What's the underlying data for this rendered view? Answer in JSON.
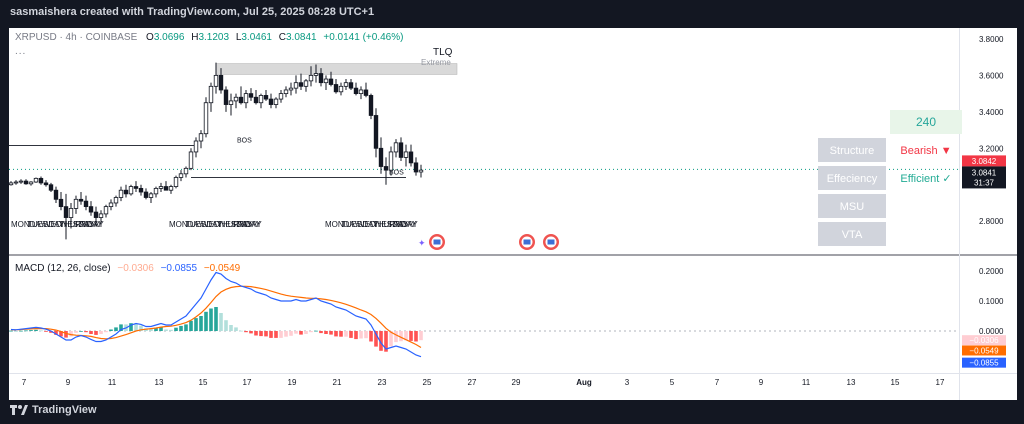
{
  "header": {
    "text": "sasmaishera created with TradingView.com, Jul 25, 2025 08:28 UTC+1"
  },
  "legend": {
    "symbol": "XRPUSD · 4h · COINBASE",
    "o_label": "O",
    "o": "3.0696",
    "h_label": "H",
    "h": "3.1203",
    "l_label": "L",
    "l": "3.0461",
    "c_label": "C",
    "c": "3.0841",
    "change": "+0.0141 (+0.46%)",
    "dots": "..."
  },
  "macd_legend": {
    "name": "MACD (12, 26, close)",
    "hist": "−0.0306",
    "macd": "−0.0855",
    "signal": "−0.0549"
  },
  "annotations": {
    "tlq": "TLQ",
    "extreme": "Extreme",
    "bos1": "BOS",
    "bos2": "BOS"
  },
  "day_labels": {
    "g1": [
      "MONDAY",
      "TUESDAY",
      "WEDNESDAY",
      "THURSDAY",
      "FRIDAY"
    ],
    "g2": [
      "MONDAY",
      "TUESDAY",
      "WEDNESDAY",
      "THURSDAY",
      "FRIDAY"
    ],
    "g3": [
      "MONDAY",
      "TUESDAY",
      "WEDNESDAY",
      "THURSDAY",
      "FRIDAY"
    ]
  },
  "table": {
    "top_value": "240",
    "rows": [
      {
        "label": "Structure",
        "value": "Bearish ▼",
        "color": "#f23645"
      },
      {
        "label": "Effeciency",
        "value": "Efficient ✓",
        "color": "#22ab94"
      },
      {
        "label": "MSU",
        "value": "",
        "color": ""
      },
      {
        "label": "VTA",
        "value": "",
        "color": ""
      }
    ]
  },
  "price_axis": [
    "3.8000",
    "3.6000",
    "3.4000",
    "3.2000",
    "3.0000",
    "2.8000"
  ],
  "price_tags": {
    "last": "3.0842",
    "current": "3.0841",
    "countdown": "31:37"
  },
  "macd_axis": [
    "0.2000",
    "0.1000",
    "0.0000"
  ],
  "macd_tags": {
    "hist": "−0.0306",
    "signal": "−0.0549",
    "macd": "−0.0855"
  },
  "time_axis": [
    "7",
    "9",
    "11",
    "13",
    "15",
    "17",
    "19",
    "21",
    "23",
    "25",
    "27",
    "29",
    "Aug",
    "3",
    "5",
    "7",
    "9",
    "11",
    "13",
    "15",
    "17"
  ],
  "footer": {
    "brand": "TradingView"
  },
  "colors": {
    "up": "#089981",
    "down": "#f23645",
    "macd": "#2962ff",
    "signal": "#ff6d00",
    "hist_up_strong": "#26a69a",
    "hist_up_weak": "#b2dfdb",
    "hist_dn_strong": "#ff5252",
    "hist_dn_weak": "#ffcdd2"
  },
  "chart_data": {
    "type": "candlestick",
    "price_range": [
      2.62,
      3.86
    ],
    "candles": [
      [
        3.0,
        3.02,
        2.995,
        3.01
      ],
      [
        3.01,
        3.025,
        3.0,
        3.015
      ],
      [
        3.015,
        3.03,
        3.005,
        3.02
      ],
      [
        3.02,
        3.03,
        3.0,
        3.005
      ],
      [
        3.005,
        3.02,
        2.995,
        3.015
      ],
      [
        3.015,
        3.04,
        3.01,
        3.035
      ],
      [
        3.035,
        3.045,
        3.0,
        3.01
      ],
      [
        3.01,
        3.025,
        2.99,
        3.0
      ],
      [
        3.0,
        3.01,
        2.96,
        2.97
      ],
      [
        2.97,
        2.99,
        2.9,
        2.92
      ],
      [
        2.92,
        2.96,
        2.86,
        2.88
      ],
      [
        2.88,
        2.95,
        2.7,
        2.82
      ],
      [
        2.82,
        2.9,
        2.76,
        2.87
      ],
      [
        2.87,
        2.94,
        2.84,
        2.92
      ],
      [
        2.92,
        2.96,
        2.89,
        2.91
      ],
      [
        2.91,
        2.94,
        2.86,
        2.88
      ],
      [
        2.88,
        2.91,
        2.83,
        2.85
      ],
      [
        2.85,
        2.88,
        2.77,
        2.82
      ],
      [
        2.82,
        2.86,
        2.79,
        2.84
      ],
      [
        2.84,
        2.89,
        2.82,
        2.88
      ],
      [
        2.88,
        2.92,
        2.86,
        2.9
      ],
      [
        2.9,
        2.94,
        2.88,
        2.93
      ],
      [
        2.93,
        2.99,
        2.91,
        2.97
      ],
      [
        2.97,
        3.0,
        2.93,
        2.95
      ],
      [
        2.95,
        3.0,
        2.94,
        2.99
      ],
      [
        2.99,
        3.02,
        2.96,
        2.98
      ],
      [
        2.98,
        3.0,
        2.94,
        2.96
      ],
      [
        2.96,
        2.98,
        2.92,
        2.93
      ],
      [
        2.93,
        2.96,
        2.9,
        2.95
      ],
      [
        2.95,
        2.99,
        2.93,
        2.98
      ],
      [
        2.98,
        3.01,
        2.96,
        2.99
      ],
      [
        2.99,
        3.02,
        2.97,
        2.97
      ],
      [
        2.97,
        3.0,
        2.95,
        2.99
      ],
      [
        2.99,
        3.05,
        2.98,
        3.04
      ],
      [
        3.04,
        3.08,
        3.02,
        3.06
      ],
      [
        3.06,
        3.1,
        3.04,
        3.09
      ],
      [
        3.09,
        3.2,
        3.08,
        3.18
      ],
      [
        3.18,
        3.26,
        3.15,
        3.24
      ],
      [
        3.24,
        3.3,
        3.2,
        3.28
      ],
      [
        3.28,
        3.48,
        3.26,
        3.45
      ],
      [
        3.45,
        3.56,
        3.4,
        3.54
      ],
      [
        3.54,
        3.67,
        3.5,
        3.6
      ],
      [
        3.6,
        3.64,
        3.5,
        3.52
      ],
      [
        3.52,
        3.54,
        3.4,
        3.44
      ],
      [
        3.44,
        3.5,
        3.38,
        3.46
      ],
      [
        3.46,
        3.5,
        3.42,
        3.48
      ],
      [
        3.48,
        3.54,
        3.44,
        3.45
      ],
      [
        3.45,
        3.52,
        3.42,
        3.5
      ],
      [
        3.5,
        3.53,
        3.46,
        3.48
      ],
      [
        3.48,
        3.52,
        3.44,
        3.45
      ],
      [
        3.45,
        3.5,
        3.42,
        3.49
      ],
      [
        3.49,
        3.52,
        3.46,
        3.47
      ],
      [
        3.47,
        3.5,
        3.42,
        3.44
      ],
      [
        3.44,
        3.48,
        3.42,
        3.47
      ],
      [
        3.47,
        3.52,
        3.45,
        3.5
      ],
      [
        3.5,
        3.54,
        3.48,
        3.52
      ],
      [
        3.52,
        3.56,
        3.49,
        3.53
      ],
      [
        3.53,
        3.6,
        3.5,
        3.56
      ],
      [
        3.56,
        3.61,
        3.52,
        3.54
      ],
      [
        3.54,
        3.58,
        3.51,
        3.57
      ],
      [
        3.57,
        3.65,
        3.54,
        3.6
      ],
      [
        3.6,
        3.66,
        3.56,
        3.61
      ],
      [
        3.61,
        3.64,
        3.54,
        3.56
      ],
      [
        3.56,
        3.6,
        3.52,
        3.58
      ],
      [
        3.58,
        3.62,
        3.54,
        3.55
      ],
      [
        3.55,
        3.58,
        3.5,
        3.51
      ],
      [
        3.51,
        3.56,
        3.49,
        3.54
      ],
      [
        3.54,
        3.58,
        3.52,
        3.56
      ],
      [
        3.56,
        3.58,
        3.52,
        3.53
      ],
      [
        3.53,
        3.56,
        3.49,
        3.5
      ],
      [
        3.5,
        3.54,
        3.47,
        3.52
      ],
      [
        3.52,
        3.56,
        3.48,
        3.49
      ],
      [
        3.49,
        3.5,
        3.36,
        3.38
      ],
      [
        3.38,
        3.42,
        3.15,
        3.2
      ],
      [
        3.2,
        3.26,
        3.06,
        3.1
      ],
      [
        3.1,
        3.15,
        3.0,
        3.08
      ],
      [
        3.08,
        3.21,
        3.05,
        3.18
      ],
      [
        3.18,
        3.25,
        3.15,
        3.23
      ],
      [
        3.23,
        3.26,
        3.13,
        3.15
      ],
      [
        3.15,
        3.22,
        3.1,
        3.18
      ],
      [
        3.18,
        3.22,
        3.1,
        3.12
      ],
      [
        3.12,
        3.15,
        3.05,
        3.07
      ],
      [
        3.07,
        3.11,
        3.04,
        3.08
      ]
    ],
    "macd_range": [
      -0.14,
      0.25
    ],
    "macd_line": [
      0.005,
      0.004,
      0.006,
      0.008,
      0.01,
      0.012,
      0.01,
      0.006,
      0.0,
      -0.01,
      -0.02,
      -0.03,
      -0.03,
      -0.02,
      -0.015,
      -0.02,
      -0.028,
      -0.035,
      -0.035,
      -0.03,
      -0.02,
      -0.01,
      0.005,
      0.01,
      0.02,
      0.025,
      0.022,
      0.015,
      0.015,
      0.02,
      0.025,
      0.02,
      0.02,
      0.03,
      0.04,
      0.05,
      0.07,
      0.09,
      0.11,
      0.14,
      0.17,
      0.195,
      0.19,
      0.175,
      0.165,
      0.16,
      0.15,
      0.145,
      0.14,
      0.13,
      0.125,
      0.12,
      0.11,
      0.105,
      0.1,
      0.1,
      0.1,
      0.105,
      0.1,
      0.1,
      0.105,
      0.11,
      0.1,
      0.095,
      0.09,
      0.08,
      0.075,
      0.07,
      0.06,
      0.05,
      0.045,
      0.04,
      0.02,
      -0.01,
      -0.04,
      -0.06,
      -0.055,
      -0.05,
      -0.055,
      -0.06,
      -0.07,
      -0.08,
      -0.0855
    ],
    "signal_line": [
      0.004,
      0.004,
      0.005,
      0.006,
      0.007,
      0.008,
      0.008,
      0.008,
      0.006,
      0.003,
      -0.002,
      -0.008,
      -0.012,
      -0.014,
      -0.015,
      -0.016,
      -0.018,
      -0.022,
      -0.025,
      -0.026,
      -0.025,
      -0.022,
      -0.017,
      -0.012,
      -0.006,
      0.0,
      0.004,
      0.006,
      0.008,
      0.01,
      0.013,
      0.015,
      0.016,
      0.019,
      0.023,
      0.028,
      0.036,
      0.047,
      0.06,
      0.076,
      0.095,
      0.115,
      0.13,
      0.139,
      0.145,
      0.148,
      0.149,
      0.149,
      0.148,
      0.145,
      0.142,
      0.138,
      0.133,
      0.128,
      0.123,
      0.119,
      0.116,
      0.114,
      0.112,
      0.11,
      0.109,
      0.109,
      0.107,
      0.105,
      0.102,
      0.098,
      0.094,
      0.089,
      0.083,
      0.077,
      0.07,
      0.064,
      0.055,
      0.042,
      0.026,
      0.009,
      -0.004,
      -0.013,
      -0.021,
      -0.029,
      -0.037,
      -0.045,
      -0.0549
    ],
    "time_labels": [
      "7",
      "9",
      "11",
      "13",
      "15",
      "17",
      "19",
      "21",
      "23",
      "25",
      "27",
      "29",
      "Aug",
      "3",
      "5",
      "7",
      "9",
      "11",
      "13",
      "15",
      "17"
    ]
  }
}
